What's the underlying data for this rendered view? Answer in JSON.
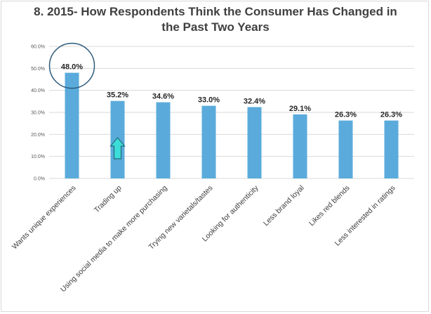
{
  "page": {
    "title_line1": "8. 2015- How Respondents Think the Consumer Has Changed in",
    "title_line2": "the Past Two Years"
  },
  "colors": {
    "bar": "#5aabdb",
    "grid": "#d9d9d9",
    "circle": "#2e5a7a",
    "arrow_fill": "#3cdcd8",
    "arrow_stroke": "#1f6e7a"
  },
  "annotations": {
    "circle_around": "Wants unique experiences",
    "arrow_icon": "up-arrow-icon",
    "arrow_at": "Trading up"
  },
  "chart_data": {
    "type": "bar",
    "title": "8. 2015- How Respondents Think the Consumer Has Changed in the Past Two Years",
    "categories": [
      "Wants unique experiences",
      "Trading up",
      "Using social media to make more purchasing",
      "Trying new varietals/tastes",
      "Looking for authenticity",
      "Less brand loyal",
      "Likes red blends",
      "Less interested in ratings"
    ],
    "values": [
      48.0,
      35.2,
      34.6,
      33.0,
      32.4,
      29.1,
      26.3,
      26.3
    ],
    "data_labels": [
      "48.0%",
      "35.2%",
      "34.6%",
      "33.0%",
      "32.4%",
      "29.1%",
      "26.3%",
      "26.3%"
    ],
    "ylim": [
      0,
      60
    ],
    "yticks": [
      0,
      10,
      20,
      30,
      40,
      50,
      60
    ],
    "ytick_labels": [
      "0.0%",
      "10.0%",
      "20.0%",
      "30.0%",
      "40.0%",
      "50.0%",
      "60.0%"
    ],
    "xlabel": "",
    "ylabel": "",
    "grid": true,
    "legend": "none"
  }
}
